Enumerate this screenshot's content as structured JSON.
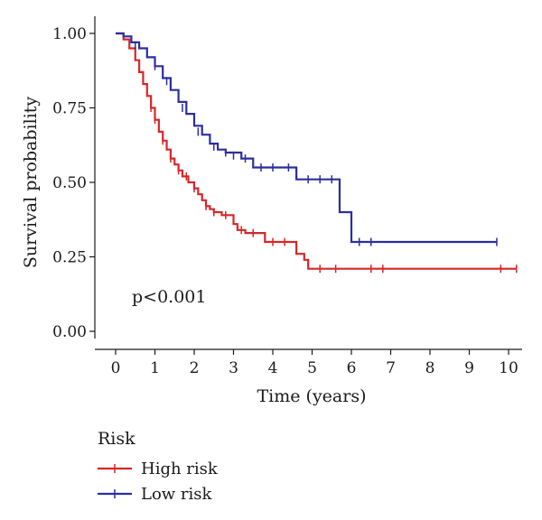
{
  "chart_data": {
    "type": "line",
    "xlabel": "Time (years)",
    "ylabel": "Survival probability",
    "xlim": [
      0,
      10
    ],
    "ylim": [
      0,
      1
    ],
    "x_ticks": [
      "0",
      "1",
      "2",
      "3",
      "4",
      "5",
      "6",
      "7",
      "8",
      "9",
      "10"
    ],
    "y_ticks": [
      "0.00",
      "0.25",
      "0.50",
      "0.75",
      "1.00"
    ],
    "annotation": "p<0.001",
    "legend": {
      "title": "Risk",
      "placement": "bottom-left"
    },
    "series": [
      {
        "name": "High risk",
        "color": "#d62728",
        "steps": [
          [
            0,
            1.0
          ],
          [
            0.2,
            0.98
          ],
          [
            0.35,
            0.95
          ],
          [
            0.5,
            0.91
          ],
          [
            0.6,
            0.87
          ],
          [
            0.7,
            0.83
          ],
          [
            0.8,
            0.79
          ],
          [
            0.9,
            0.75
          ],
          [
            1.0,
            0.71
          ],
          [
            1.1,
            0.67
          ],
          [
            1.2,
            0.64
          ],
          [
            1.3,
            0.61
          ],
          [
            1.4,
            0.58
          ],
          [
            1.5,
            0.56
          ],
          [
            1.6,
            0.54
          ],
          [
            1.7,
            0.52
          ],
          [
            1.85,
            0.5
          ],
          [
            2.0,
            0.48
          ],
          [
            2.1,
            0.46
          ],
          [
            2.2,
            0.44
          ],
          [
            2.3,
            0.42
          ],
          [
            2.4,
            0.41
          ],
          [
            2.5,
            0.4
          ],
          [
            2.7,
            0.39
          ],
          [
            3.0,
            0.36
          ],
          [
            3.1,
            0.34
          ],
          [
            3.3,
            0.33
          ],
          [
            3.8,
            0.3
          ],
          [
            4.6,
            0.26
          ],
          [
            4.8,
            0.24
          ],
          [
            4.9,
            0.21
          ],
          [
            10.2,
            0.21
          ]
        ],
        "censors": [
          [
            0.9,
            0.75
          ],
          [
            1.0,
            0.71
          ],
          [
            1.2,
            0.64
          ],
          [
            1.4,
            0.58
          ],
          [
            1.6,
            0.54
          ],
          [
            1.8,
            0.52
          ],
          [
            2.0,
            0.48
          ],
          [
            2.3,
            0.42
          ],
          [
            2.5,
            0.4
          ],
          [
            2.8,
            0.39
          ],
          [
            3.2,
            0.34
          ],
          [
            3.5,
            0.33
          ],
          [
            4.0,
            0.3
          ],
          [
            4.3,
            0.3
          ],
          [
            5.2,
            0.21
          ],
          [
            5.6,
            0.21
          ],
          [
            6.5,
            0.21
          ],
          [
            6.8,
            0.21
          ],
          [
            9.8,
            0.21
          ],
          [
            10.2,
            0.21
          ]
        ]
      },
      {
        "name": "Low risk",
        "color": "#2b2f9e",
        "steps": [
          [
            0,
            1.0
          ],
          [
            0.2,
            0.99
          ],
          [
            0.4,
            0.97
          ],
          [
            0.6,
            0.95
          ],
          [
            0.8,
            0.92
          ],
          [
            1.0,
            0.89
          ],
          [
            1.2,
            0.85
          ],
          [
            1.4,
            0.81
          ],
          [
            1.6,
            0.77
          ],
          [
            1.8,
            0.73
          ],
          [
            2.0,
            0.69
          ],
          [
            2.2,
            0.66
          ],
          [
            2.4,
            0.63
          ],
          [
            2.6,
            0.61
          ],
          [
            2.8,
            0.6
          ],
          [
            3.2,
            0.58
          ],
          [
            3.5,
            0.55
          ],
          [
            4.6,
            0.51
          ],
          [
            5.7,
            0.4
          ],
          [
            6.0,
            0.3
          ],
          [
            9.7,
            0.3
          ]
        ],
        "censors": [
          [
            0.5,
            0.96
          ],
          [
            1.0,
            0.89
          ],
          [
            1.3,
            0.84
          ],
          [
            1.7,
            0.75
          ],
          [
            2.1,
            0.67
          ],
          [
            2.5,
            0.62
          ],
          [
            2.8,
            0.6
          ],
          [
            3.0,
            0.59
          ],
          [
            3.3,
            0.58
          ],
          [
            3.7,
            0.55
          ],
          [
            4.0,
            0.55
          ],
          [
            4.4,
            0.55
          ],
          [
            4.9,
            0.51
          ],
          [
            5.2,
            0.51
          ],
          [
            5.5,
            0.51
          ],
          [
            6.2,
            0.3
          ],
          [
            6.5,
            0.3
          ],
          [
            9.7,
            0.3
          ]
        ]
      }
    ]
  }
}
